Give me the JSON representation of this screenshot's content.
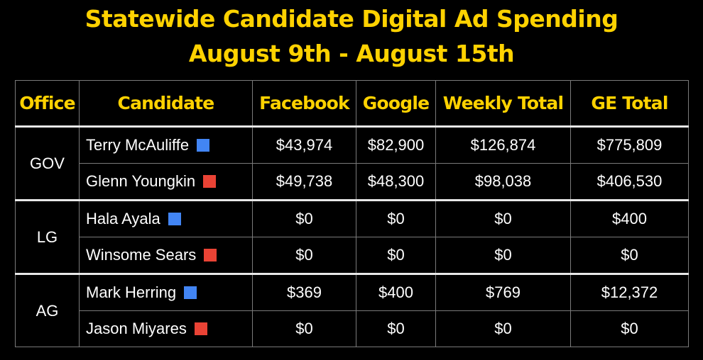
{
  "title": {
    "line1": "Statewide Candidate Digital Ad Spending",
    "line2": "August 9th - August 15th"
  },
  "colors": {
    "background": "#000000",
    "accent": "#FFD200",
    "democrat": "#4285F4",
    "republican": "#EA4335"
  },
  "table": {
    "headers": [
      "Office",
      "Candidate",
      "Facebook",
      "Google",
      "Weekly Total",
      "GE Total"
    ],
    "groups": [
      {
        "office": "GOV",
        "rows": [
          {
            "candidate": "Terry McAuliffe",
            "party_color": "#4285F4",
            "facebook": "$43,974",
            "google": "$82,900",
            "weekly_total": "$126,874",
            "ge_total": "$775,809"
          },
          {
            "candidate": "Glenn Youngkin",
            "party_color": "#EA4335",
            "facebook": "$49,738",
            "google": "$48,300",
            "weekly_total": "$98,038",
            "ge_total": "$406,530"
          }
        ]
      },
      {
        "office": "LG",
        "rows": [
          {
            "candidate": "Hala Ayala",
            "party_color": "#4285F4",
            "facebook": "$0",
            "google": "$0",
            "weekly_total": "$0",
            "ge_total": "$400"
          },
          {
            "candidate": "Winsome Sears",
            "party_color": "#EA4335",
            "facebook": "$0",
            "google": "$0",
            "weekly_total": "$0",
            "ge_total": "$0"
          }
        ]
      },
      {
        "office": "AG",
        "rows": [
          {
            "candidate": "Mark Herring",
            "party_color": "#4285F4",
            "facebook": "$369",
            "google": "$400",
            "weekly_total": "$769",
            "ge_total": "$12,372"
          },
          {
            "candidate": "Jason Miyares",
            "party_color": "#EA4335",
            "facebook": "$0",
            "google": "$0",
            "weekly_total": "$0",
            "ge_total": "$0"
          }
        ]
      }
    ]
  }
}
